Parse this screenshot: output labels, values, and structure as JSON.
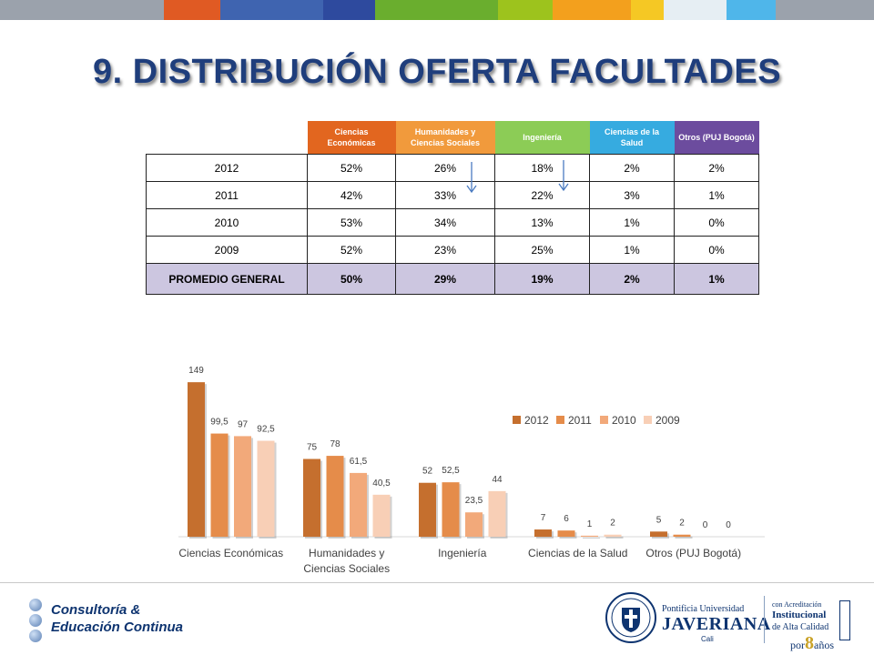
{
  "top_bar_colors": [
    "#9ba2ac",
    "#9ba2ac",
    "#e05a23",
    "#3f64b0",
    "#2e4a9e",
    "#6aae2e",
    "#9dc31d",
    "#f3a01d",
    "#f5c824",
    "#e6eef3",
    "#4fb6ea",
    "#9ba2ac"
  ],
  "page_title": "9. DISTRIBUCIÓN OFERTA FACULTADES",
  "table": {
    "headers": [
      {
        "label": "Ciencias Económicas",
        "color": "#e2661f"
      },
      {
        "label": "Humanidades y Ciencias Sociales",
        "color": "#f19a3c"
      },
      {
        "label": "Ingeniería",
        "color": "#8ccc56"
      },
      {
        "label": "Ciencias de la Salud",
        "color": "#36abe0"
      },
      {
        "label": "Otros (PUJ Bogotá)",
        "color": "#6c4c9e"
      }
    ],
    "rows": [
      {
        "label": "2012",
        "values": [
          "52%",
          "26%",
          "18%",
          "2%",
          "2%"
        ]
      },
      {
        "label": "2011",
        "values": [
          "42%",
          "33%",
          "22%",
          "3%",
          "1%"
        ]
      },
      {
        "label": "2010",
        "values": [
          "53%",
          "34%",
          "13%",
          "1%",
          "0%"
        ]
      },
      {
        "label": "2009",
        "values": [
          "52%",
          "23%",
          "25%",
          "1%",
          "0%"
        ]
      }
    ],
    "average_row": {
      "label": "PROMEDIO GENERAL",
      "values": [
        "50%",
        "29%",
        "19%",
        "2%",
        "1%"
      ]
    }
  },
  "chart_data": {
    "type": "bar",
    "categories": [
      "Ciencias Económicas",
      "Humanidades y Ciencias Sociales",
      "Ingeniería",
      "Ciencias de la Salud",
      "Otros (PUJ Bogotá)"
    ],
    "series": [
      {
        "name": "2012",
        "values": [
          149,
          75,
          52,
          7,
          5
        ],
        "labels": [
          "149",
          "75",
          "52",
          "7",
          "5"
        ],
        "color": "#c56f2e"
      },
      {
        "name": "2011",
        "values": [
          99.5,
          78,
          52.5,
          6,
          2
        ],
        "labels": [
          "99,5",
          "78",
          "52,5",
          "6",
          "2"
        ],
        "color": "#e58c4a"
      },
      {
        "name": "2010",
        "values": [
          97,
          61.5,
          23.5,
          1,
          0
        ],
        "labels": [
          "97",
          "61,5",
          "23,5",
          "1",
          "0"
        ],
        "color": "#f2a97a"
      },
      {
        "name": "2009",
        "values": [
          92.5,
          40.5,
          44,
          2,
          0
        ],
        "labels": [
          "92,5",
          "40,5",
          "44",
          "2",
          "0"
        ],
        "color": "#f8cfb6"
      }
    ],
    "ylim": [
      0,
      150
    ],
    "legend_position": "top-right"
  },
  "footer": {
    "left_line1": "Consultoría &",
    "left_line2": "Educación Continua",
    "uni_line1": "Pontificia Universidad",
    "uni_line2": "JAVERIANA",
    "uni_line3": "Cali",
    "accred_line1": "con Acreditación",
    "accred_line2": "Institucional",
    "accred_line3": "de Alta Calidad",
    "accred_line4_prefix": "por",
    "accred_number": "8",
    "accred_line4_suffix": "años"
  }
}
